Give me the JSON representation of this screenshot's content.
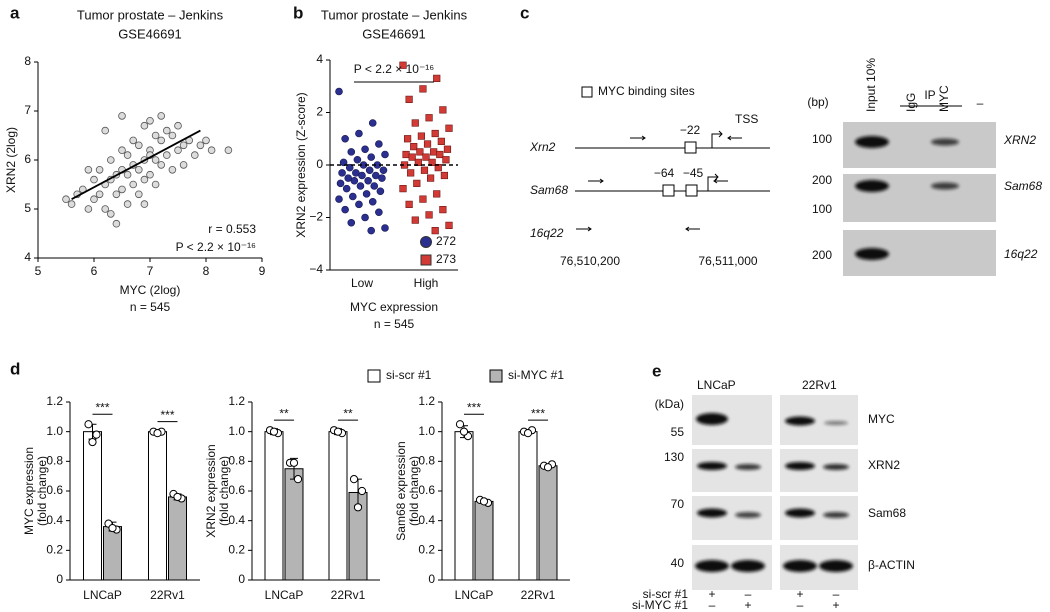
{
  "panel_labels": [
    "a",
    "b",
    "c",
    "d",
    "e"
  ],
  "chart_data": [
    {
      "type": "scatter",
      "title": "Tumor prostate – Jenkins",
      "subtitle": "GSE46691",
      "xlabel": "MYC (2log)",
      "ylabel": "XRN2 (2log)",
      "annotations": {
        "r": "r = 0.553",
        "p": "P < 2.2 × 10⁻¹⁶",
        "n": "n = 545"
      },
      "xlim": [
        5,
        9
      ],
      "xticks": [
        5,
        6,
        7,
        8,
        9
      ],
      "ylim": [
        4,
        8
      ],
      "yticks": [
        4,
        5,
        6,
        7,
        8
      ],
      "color": "#dcdcdc",
      "x": [
        5.5,
        5.6,
        5.7,
        5.8,
        5.9,
        6.0,
        6.0,
        6.1,
        6.1,
        6.2,
        6.2,
        6.3,
        6.3,
        6.3,
        6.4,
        6.4,
        6.5,
        6.5,
        6.5,
        6.6,
        6.6,
        6.6,
        6.7,
        6.7,
        6.7,
        6.8,
        6.8,
        6.8,
        6.9,
        6.9,
        6.9,
        7.0,
        7.0,
        7.0,
        7.1,
        7.1,
        7.1,
        7.2,
        7.2,
        7.3,
        7.3,
        7.4,
        7.4,
        7.5,
        7.5,
        7.6,
        7.6,
        7.7,
        7.8,
        7.9,
        8.0,
        8.1,
        8.4,
        6.2,
        6.5,
        6.9,
        7.2,
        5.9,
        6.4,
        7.0
      ],
      "y": [
        5.2,
        5.1,
        5.3,
        5.4,
        5.0,
        5.6,
        5.2,
        5.8,
        5.3,
        5.5,
        5.0,
        6.0,
        5.6,
        4.9,
        5.7,
        5.3,
        6.2,
        5.8,
        5.4,
        6.1,
        5.7,
        5.1,
        6.4,
        5.9,
        5.5,
        6.3,
        5.8,
        5.3,
        6.7,
        6.0,
        5.6,
        6.8,
        6.2,
        5.7,
        6.5,
        6.0,
        5.5,
        6.4,
        5.9,
        6.6,
        6.1,
        6.5,
        5.8,
        6.7,
        6.2,
        6.3,
        5.9,
        6.4,
        6.1,
        6.3,
        6.4,
        6.2,
        6.2,
        6.6,
        6.9,
        5.1,
        6.9,
        5.8,
        4.7,
        6.1
      ],
      "fit_line": {
        "x": [
          5.6,
          7.9
        ],
        "y": [
          5.2,
          6.6
        ]
      }
    },
    {
      "type": "strip",
      "title": "Tumor prostate – Jenkins",
      "subtitle": "GSE46691",
      "xlabel": "MYC expression",
      "ylabel": "XRN2 expression (Z-score)",
      "n_label": "n = 545",
      "significance": "P < 2.2 × 10⁻¹⁶",
      "categories": [
        "Low",
        "High"
      ],
      "ylim": [
        -4,
        4
      ],
      "yticks": [
        {
          "value": -4,
          "label": "−4"
        },
        {
          "value": -2,
          "label": "−2"
        },
        0,
        2,
        4
      ],
      "reference_line": 0,
      "series": [
        {
          "name": "272",
          "color": "#2b2f8f",
          "marker": "circle",
          "values": [
            2.8,
            1.6,
            1.2,
            1.0,
            0.8,
            0.6,
            0.5,
            0.4,
            0.3,
            0.2,
            0.1,
            0.0,
            0.0,
            -0.1,
            -0.2,
            -0.2,
            -0.3,
            -0.3,
            -0.4,
            -0.4,
            -0.5,
            -0.5,
            -0.6,
            -0.6,
            -0.7,
            -0.8,
            -0.8,
            -0.9,
            -1.0,
            -1.1,
            -1.2,
            -1.3,
            -1.4,
            -1.5,
            -1.7,
            -1.8,
            -2.0,
            -2.2,
            -2.4,
            -2.5
          ]
        },
        {
          "name": "273",
          "color": "#d23b35",
          "marker": "square",
          "values": [
            3.8,
            3.3,
            2.9,
            2.5,
            2.1,
            1.8,
            1.6,
            1.4,
            1.2,
            1.1,
            1.0,
            0.9,
            0.8,
            0.7,
            0.6,
            0.5,
            0.5,
            0.4,
            0.4,
            0.3,
            0.3,
            0.2,
            0.1,
            0.1,
            0.0,
            -0.1,
            -0.2,
            -0.3,
            -0.4,
            -0.5,
            -0.7,
            -0.9,
            -1.1,
            -1.3,
            -1.5,
            -1.7,
            -1.9,
            -2.1,
            -2.3,
            -2.5
          ]
        }
      ]
    },
    {
      "type": "bar",
      "ylabel": [
        "MYC expression",
        "(fold change)"
      ],
      "categories": [
        "LNCaP",
        "22Rv1"
      ],
      "ylim": [
        0,
        1.2
      ],
      "yticks": [
        0,
        0.2,
        0.4,
        0.6,
        0.8,
        {
          "value": 1,
          "label": "1.0"
        },
        1.2
      ],
      "significance": [
        "***",
        "***"
      ],
      "series": [
        {
          "name": "si-scr #1",
          "color": "#ffffff",
          "values": [
            1.0,
            1.0
          ],
          "errors": [
            0.05,
            0.01
          ],
          "points": [
            [
              1.05,
              0.98,
              0.93
            ],
            [
              1.0,
              1.0,
              0.99
            ]
          ]
        },
        {
          "name": "si-MYC #1",
          "color": "#b4b4b4",
          "values": [
            0.36,
            0.56
          ],
          "errors": [
            0.03,
            0.02
          ],
          "points": [
            [
              0.38,
              0.34,
              0.35
            ],
            [
              0.58,
              0.55,
              0.56
            ]
          ]
        }
      ]
    },
    {
      "type": "bar",
      "ylabel": [
        "XRN2 expression",
        "(fold change)"
      ],
      "categories": [
        "LNCaP",
        "22Rv1"
      ],
      "ylim": [
        0,
        1.2
      ],
      "yticks": [
        0,
        0.2,
        0.4,
        0.6,
        0.8,
        {
          "value": 1,
          "label": "1.0"
        },
        1.2
      ],
      "significance": [
        "**",
        "**"
      ],
      "series": [
        {
          "color": "#ffffff",
          "values": [
            1.0,
            1.0
          ],
          "errors": [
            0.02,
            0.02
          ],
          "points": [
            [
              1.01,
              0.99,
              1.0
            ],
            [
              1.01,
              0.99,
              1.0
            ]
          ]
        },
        {
          "color": "#b4b4b4",
          "values": [
            0.75,
            0.59
          ],
          "errors": [
            0.07,
            0.09
          ],
          "points": [
            [
              0.79,
              0.68,
              0.79
            ],
            [
              0.68,
              0.6,
              0.49
            ]
          ]
        }
      ]
    },
    {
      "type": "bar",
      "ylabel": [
        "Sam68 expression",
        "(fold change)"
      ],
      "categories": [
        "LNCaP",
        "22Rv1"
      ],
      "ylim": [
        0,
        1.2
      ],
      "yticks": [
        0,
        0.2,
        0.4,
        0.6,
        0.8,
        {
          "value": 1,
          "label": "1.0"
        },
        1.2
      ],
      "significance": [
        "***",
        "***"
      ],
      "series": [
        {
          "color": "#ffffff",
          "values": [
            1.0,
            1.0
          ],
          "errors": [
            0.04,
            0.01
          ],
          "points": [
            [
              1.05,
              0.97,
              1.0
            ],
            [
              1.0,
              1.01,
              0.99
            ]
          ]
        },
        {
          "color": "#b4b4b4",
          "values": [
            0.53,
            0.77
          ],
          "errors": [
            0.01,
            0.01
          ],
          "points": [
            [
              0.54,
              0.52,
              0.53
            ],
            [
              0.77,
              0.78,
              0.76
            ]
          ]
        }
      ]
    }
  ],
  "gene_diagram": {
    "legend": "MYC binding sites",
    "tss": "TSS",
    "rows": [
      {
        "label": "Xrn2",
        "sites": [
          "−22"
        ]
      },
      {
        "label": "Sam68",
        "sites": [
          "−64",
          "−45"
        ]
      },
      {
        "label": "16q22",
        "sites": []
      }
    ],
    "coordinates": [
      "76,510,200",
      "76,511,000"
    ]
  },
  "chip_gel": {
    "unit": "(bp)",
    "ip_label": "IP",
    "lanes": [
      "Input 10%",
      "IgG",
      "MYC",
      "–"
    ],
    "rows": [
      {
        "label": "XRN2",
        "sizes": [
          100
        ]
      },
      {
        "label": "Sam68",
        "sizes": [
          200,
          100
        ]
      },
      {
        "label": "16q22",
        "sizes": [
          200
        ]
      }
    ]
  },
  "western_blot": {
    "unit": "(kDa)",
    "cell_lines": [
      "LNCaP",
      "22Rv1"
    ],
    "rows": [
      {
        "label": "MYC",
        "size": 55
      },
      {
        "label": "XRN2",
        "size": 130
      },
      {
        "label": "Sam68",
        "size": 70
      },
      {
        "label": "β-ACTIN",
        "size": 40
      }
    ],
    "conditions": [
      {
        "label": "si-scr #1",
        "marks": [
          "+",
          "–",
          "+",
          "–"
        ]
      },
      {
        "label": "si-MYC #1",
        "marks": [
          "–",
          "+",
          "–",
          "+"
        ]
      }
    ]
  }
}
